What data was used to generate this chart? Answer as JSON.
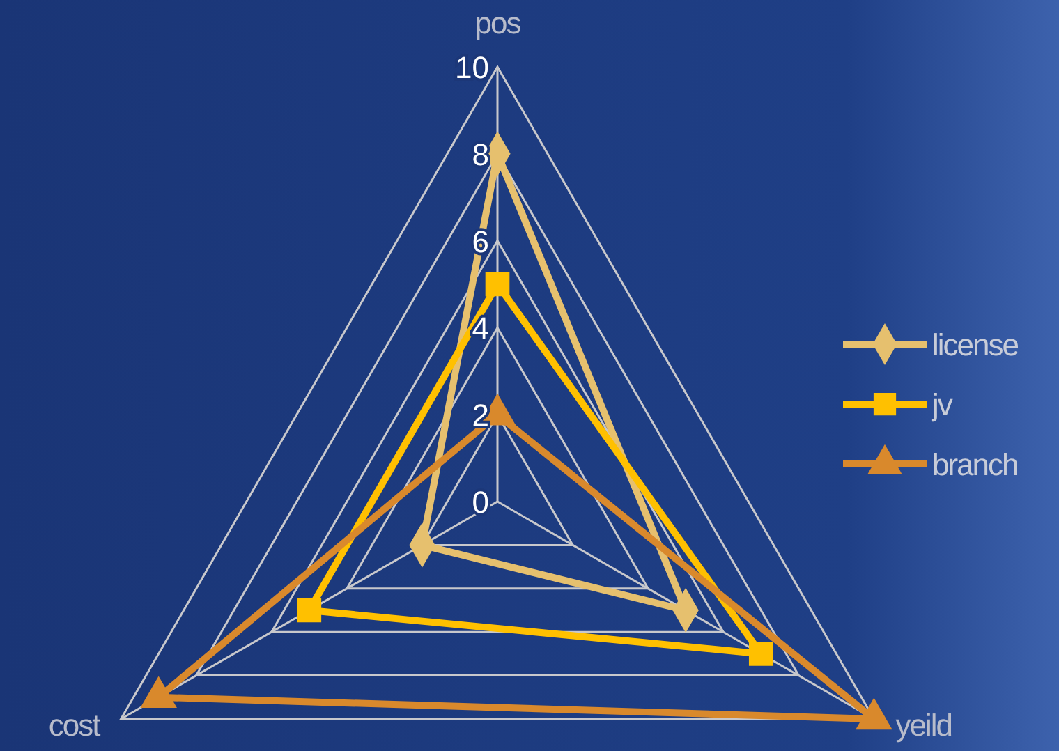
{
  "chart_data": {
    "type": "radar",
    "categories": [
      "pos",
      "yeild",
      "cost"
    ],
    "series": [
      {
        "name": "license",
        "color": "#e6c06e",
        "values": [
          8,
          5,
          2
        ],
        "marker": "diamond"
      },
      {
        "name": "jv",
        "color": "#ffc000",
        "values": [
          5,
          7,
          5
        ],
        "marker": "square"
      },
      {
        "name": "branch",
        "color": "#d9892c",
        "values": [
          2,
          10,
          9
        ],
        "marker": "triangle"
      }
    ],
    "ylim": [
      0,
      10
    ],
    "yticks": [
      0,
      2,
      4,
      6,
      8,
      10
    ],
    "grid": true,
    "legend": "right",
    "line_style": "solid"
  }
}
